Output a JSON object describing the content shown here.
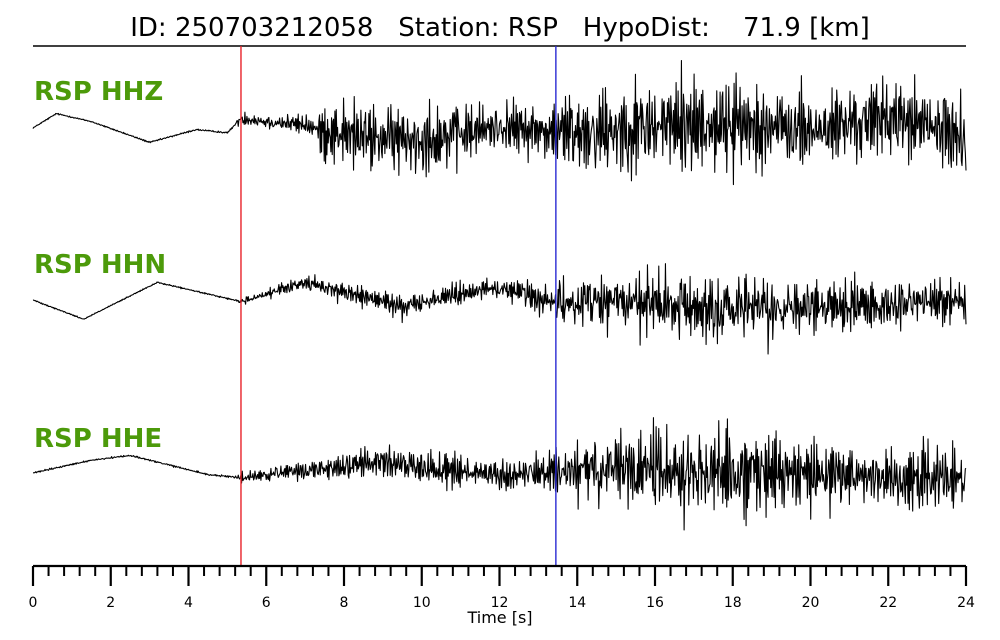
{
  "colors": {
    "trace": "#000000",
    "channel_label": "#4c9a0a",
    "p_marker": "#e8232a",
    "s_marker": "#2a2ad2",
    "axis": "#000000"
  },
  "header": {
    "id_label": "ID:",
    "id_value": "250703212058",
    "station_label": "Station:",
    "station_value": "RSP",
    "dist_label": "HypoDist:",
    "dist_value": "71.9",
    "dist_unit": "[km]"
  },
  "chart_data": {
    "type": "line",
    "title": "ID: 250703212058   Station: RSP   HypoDist:    71.9 [km]",
    "xlabel": "Time [s]",
    "ylabel": "",
    "xlim": [
      0,
      24
    ],
    "x_major_ticks": [
      0,
      2,
      4,
      6,
      8,
      10,
      12,
      14,
      16,
      18,
      20,
      22,
      24
    ],
    "x_minor_step": 0.4,
    "x_tick_labels": [
      "0",
      "2",
      "4",
      "6",
      "8",
      "10",
      "12",
      "14",
      "16",
      "18",
      "20",
      "22",
      "24"
    ],
    "grid": false,
    "markers": [
      {
        "name": "P arrival",
        "x": 5.35,
        "color": "#e8232a"
      },
      {
        "name": "S arrival",
        "x": 13.45,
        "color": "#2a2ad2"
      }
    ],
    "series": [
      {
        "name": "RSP HHZ",
        "trend": [
          [
            0,
            0.0
          ],
          [
            0.6,
            0.45
          ],
          [
            1.5,
            0.2
          ],
          [
            3.0,
            -0.45
          ],
          [
            4.2,
            -0.05
          ],
          [
            5.0,
            -0.15
          ],
          [
            5.35,
            0.3
          ],
          [
            6.0,
            0.2
          ],
          [
            7.0,
            0.1
          ],
          [
            7.4,
            -0.1
          ],
          [
            9.0,
            -0.35
          ],
          [
            10.5,
            -0.3
          ],
          [
            12.0,
            0.05
          ],
          [
            13.4,
            -0.15
          ],
          [
            14.0,
            -0.1
          ],
          [
            16.5,
            0.1
          ],
          [
            18.5,
            0.1
          ],
          [
            20.0,
            -0.1
          ],
          [
            22.0,
            0.35
          ],
          [
            24.0,
            -0.25
          ]
        ],
        "noise": [
          [
            0,
            0.03
          ],
          [
            5.2,
            0.04
          ],
          [
            5.35,
            0.3
          ],
          [
            7.3,
            0.45
          ],
          [
            7.5,
            1.3
          ],
          [
            10.2,
            1.6
          ],
          [
            12.0,
            1.0
          ],
          [
            13.4,
            1.4
          ],
          [
            14.0,
            2.0
          ],
          [
            16.8,
            2.2
          ],
          [
            20.0,
            1.7
          ],
          [
            24.0,
            1.7
          ]
        ]
      },
      {
        "name": "RSP HHN",
        "trend": [
          [
            0,
            0.0
          ],
          [
            1.3,
            -0.6
          ],
          [
            3.2,
            0.55
          ],
          [
            5.35,
            -0.05
          ],
          [
            7.0,
            0.55
          ],
          [
            9.5,
            -0.2
          ],
          [
            11.5,
            0.35
          ],
          [
            12.5,
            0.3
          ],
          [
            13.4,
            -0.15
          ],
          [
            14.5,
            0.0
          ],
          [
            18.0,
            -0.35
          ],
          [
            24.0,
            0.0
          ]
        ],
        "noise": [
          [
            0,
            0.03
          ],
          [
            5.2,
            0.03
          ],
          [
            5.35,
            0.15
          ],
          [
            8.0,
            0.4
          ],
          [
            10.0,
            0.55
          ],
          [
            12.0,
            0.45
          ],
          [
            13.4,
            0.7
          ],
          [
            13.6,
            1.2
          ],
          [
            16.0,
            1.5
          ],
          [
            17.8,
            1.7
          ],
          [
            20.0,
            1.2
          ],
          [
            24.0,
            0.9
          ]
        ]
      },
      {
        "name": "RSP HHE",
        "trend": [
          [
            0,
            0.0
          ],
          [
            1.5,
            0.4
          ],
          [
            2.5,
            0.55
          ],
          [
            4.5,
            -0.05
          ],
          [
            5.35,
            -0.15
          ],
          [
            9.0,
            0.35
          ],
          [
            12.0,
            -0.1
          ],
          [
            13.4,
            0.05
          ],
          [
            16.0,
            0.1
          ],
          [
            24.0,
            -0.2
          ]
        ],
        "noise": [
          [
            0,
            0.04
          ],
          [
            5.2,
            0.04
          ],
          [
            5.35,
            0.25
          ],
          [
            9.0,
            0.7
          ],
          [
            12.0,
            0.65
          ],
          [
            13.4,
            0.8
          ],
          [
            14.0,
            1.4
          ],
          [
            16.0,
            2.0
          ],
          [
            18.0,
            2.0
          ],
          [
            20.0,
            1.4
          ],
          [
            24.0,
            1.3
          ]
        ]
      }
    ]
  }
}
